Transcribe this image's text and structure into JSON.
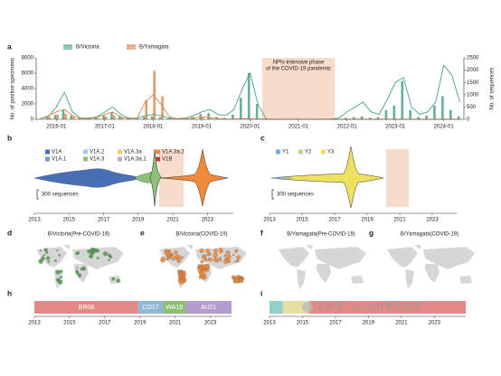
{
  "panel_labels": [
    "a",
    "b",
    "c",
    "d",
    "e",
    "f",
    "g",
    "h",
    "i"
  ],
  "chart_data": [
    {
      "type": "combo",
      "ylabel": "No. of positive specimens",
      "y2label": "No. of sequences",
      "x": [
        "2015-09",
        "2015-11",
        "2016-01",
        "2016-03",
        "2016-05",
        "2016-07",
        "2016-09",
        "2016-11",
        "2017-01",
        "2017-03",
        "2017-05",
        "2017-07",
        "2017-09",
        "2017-11",
        "2018-01",
        "2018-03",
        "2018-05",
        "2018-07",
        "2018-09",
        "2018-11",
        "2019-01",
        "2019-03",
        "2019-05",
        "2019-07",
        "2019-09",
        "2019-11",
        "2020-01",
        "2020-03",
        "2020-05",
        "2020-07",
        "2020-09",
        "2020-11",
        "2021-01",
        "2021-03",
        "2021-05",
        "2021-07",
        "2021-09",
        "2021-11",
        "2022-01",
        "2022-03",
        "2022-05",
        "2022-07",
        "2022-09",
        "2022-11",
        "2023-01",
        "2023-03",
        "2023-05",
        "2023-07",
        "2023-09",
        "2023-11",
        "2024-01",
        "2024-03",
        "2024-05"
      ],
      "xlim": [
        "2015-08",
        "2024-06"
      ],
      "xticks": [
        "2016-01",
        "2017-01",
        "2018-01",
        "2019-01",
        "2020-01",
        "2021-01",
        "2022-01",
        "2023-01",
        "2024-01"
      ],
      "ylim": [
        0,
        8000
      ],
      "yticks": [
        0,
        2000,
        4000,
        6000,
        8000
      ],
      "y2lim": [
        0,
        2500
      ],
      "y2ticks": [
        0,
        500,
        1000,
        1500,
        2000,
        2500
      ],
      "series": [
        {
          "name": "B/Victoria",
          "color": "#4aa37f",
          "kind": "bar",
          "values": [
            50,
            200,
            600,
            1300,
            500,
            100,
            100,
            200,
            500,
            900,
            400,
            100,
            100,
            300,
            400,
            300,
            100,
            50,
            100,
            300,
            700,
            800,
            300,
            200,
            600,
            2800,
            6000,
            2000,
            0,
            0,
            0,
            0,
            0,
            0,
            0,
            0,
            0,
            0,
            200,
            300,
            400,
            200,
            300,
            1200,
            1800,
            5000,
            1200,
            300,
            500,
            1800,
            3000,
            1200,
            400
          ]
        },
        {
          "name": "B/Yamagata",
          "color": "#e0874f",
          "kind": "bar",
          "values": [
            50,
            300,
            600,
            700,
            300,
            50,
            50,
            150,
            400,
            500,
            200,
            50,
            100,
            2500,
            6300,
            3000,
            300,
            50,
            50,
            100,
            200,
            150,
            50,
            20,
            20,
            50,
            50,
            20,
            0,
            0,
            0,
            0,
            0,
            0,
            0,
            0,
            0,
            0,
            0,
            0,
            0,
            0,
            0,
            0,
            0,
            0,
            0,
            0,
            0,
            0,
            0,
            0,
            0
          ]
        },
        {
          "name": "B/Victoria",
          "color": "#4aa37f",
          "kind": "line",
          "axis": "y2",
          "values": [
            20,
            100,
            500,
            1100,
            300,
            50,
            50,
            100,
            300,
            500,
            200,
            50,
            50,
            150,
            200,
            150,
            50,
            30,
            50,
            150,
            300,
            400,
            200,
            150,
            400,
            1200,
            1900,
            600,
            10,
            0,
            0,
            0,
            0,
            0,
            0,
            0,
            10,
            50,
            300,
            500,
            700,
            300,
            200,
            800,
            1500,
            1700,
            500,
            200,
            300,
            700,
            2200,
            1800,
            700
          ]
        },
        {
          "name": "B/Yamagata",
          "color": "#e0874f",
          "kind": "line",
          "axis": "y2",
          "values": [
            20,
            150,
            300,
            400,
            150,
            20,
            20,
            80,
            200,
            300,
            100,
            20,
            50,
            700,
            1000,
            600,
            100,
            20,
            20,
            50,
            100,
            80,
            20,
            10,
            10,
            20,
            20,
            10,
            0,
            0,
            0,
            0,
            0,
            0,
            0,
            0,
            0,
            0,
            0,
            0,
            0,
            0,
            0,
            0,
            0,
            0,
            0,
            0,
            0,
            0,
            0,
            0,
            0
          ]
        }
      ],
      "shaded": {
        "start": "2020-04",
        "end": "2021-10",
        "label": [
          "NPIs-intensive phase",
          "of the COVID-19 pandemic"
        ]
      }
    }
  ],
  "lineages": {
    "b": {
      "legend": [
        {
          "name": "V1A",
          "color": "#4a6fb5"
        },
        {
          "name": "V1A.1",
          "color": "#6f9bd6"
        },
        {
          "name": "V1A.2",
          "color": "#a9cbe8"
        },
        {
          "name": "V1A.3",
          "color": "#8fc07a"
        },
        {
          "name": "V1A.3a",
          "color": "#e8d560"
        },
        {
          "name": "V1A.3a.1",
          "color": "#c9a3d6"
        },
        {
          "name": "V1A.3a.2",
          "color": "#ef8a3c"
        },
        {
          "name": "V1B",
          "color": "#d03a3a"
        }
      ],
      "scale_label": "300 sequences",
      "xlim": [
        2013,
        2024.5
      ],
      "xticks": [
        2013,
        2015,
        2017,
        2019,
        2021,
        2023
      ]
    },
    "c": {
      "legend": [
        {
          "name": "Y1",
          "color": "#7aaedc"
        },
        {
          "name": "Y2",
          "color": "#b6d98a"
        },
        {
          "name": "Y3",
          "color": "#f0e060"
        }
      ],
      "scale_label": "300 sequences",
      "xlim": [
        2013,
        2024.5
      ],
      "xticks": [
        2013,
        2015,
        2017,
        2019,
        2021,
        2023
      ]
    }
  },
  "maps": [
    {
      "title": "B/Victoria(Pre-COVID-19)"
    },
    {
      "title": "B/Victoria(COVID-19)"
    },
    {
      "title": "B/Yamagata(Pre-COVID-19)"
    },
    {
      "title": "B/Yamagata(COVID-19)"
    }
  ],
  "clades": {
    "h": {
      "xlim": [
        2013,
        2024.2
      ],
      "xticks": [
        2013,
        2015,
        2017,
        2019,
        2021,
        2023
      ],
      "segments": [
        {
          "name": "BR08",
          "color": "#e48a86",
          "start": 2013,
          "end": 2018.9
        },
        {
          "name": "CO17",
          "color": "#8fb8d8",
          "start": 2018.9,
          "end": 2020.3
        },
        {
          "name": "WA19",
          "color": "#8cc070",
          "start": 2020.3,
          "end": 2021.6
        },
        {
          "name": "AU21",
          "color": "#b39bd0",
          "start": 2021.6,
          "end": 2024.2
        }
      ]
    },
    "i": {
      "xlim": [
        2013,
        2024.9
      ],
      "xticks": [
        2013,
        2015,
        2017,
        2019,
        2021,
        2023
      ],
      "segments": [
        {
          "color": "#8fd0c8",
          "start": 2013,
          "end": 2013.8
        },
        {
          "color": "#e6dfa2",
          "start": 2013.8,
          "end": 2015.4
        },
        {
          "color": "#e48a86",
          "start": 2015.4,
          "end": 2024.9
        }
      ]
    }
  },
  "watermark": "公众号 · DrLab计算生物学"
}
